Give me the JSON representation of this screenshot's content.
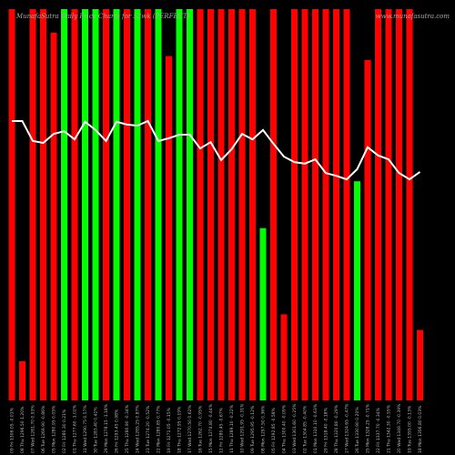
{
  "chart_data": {
    "type": "bar",
    "title": "MunafaSutra Daily Price Charts for 52wk (PERFECT)",
    "subtitle": "www.munafasutra.com",
    "categories": [
      "09 Fri 1306.05 -0.01%",
      "08 Thu 1296.50 1.20%",
      "07 Wed 1281.70 0.93%",
      "06 Tue 1269.90 -0.86%",
      "05 Mon 1280.95 0.05%",
      "02 Fri 1280.30 0.21%",
      "01 Thu 1277.60 -1.02%",
      "31 Wed 1290.75 0.57%",
      "30 Tue 1283.40 0.41%",
      "29 Mon 1278.15 -1.18%",
      "26 Fri 1293.45 0.98%",
      "25 Thu 1280.90 -0.34%",
      "24 Wed 1285.25 0.87%",
      "23 Tue 1274.20 -0.52%",
      "22 Mon 1280.85 0.77%",
      "19 Fri 1271.05 -0.15%",
      "18 Thu 1272.95 0.19%",
      "17 Wed 1270.50 0.62%",
      "16 Tue 1262.70 -0.95%",
      "15 Mon 1274.80 -0.44%",
      "12 Fri 1280.45 -0.67%",
      "11 Thu 1289.10 -0.22%",
      "10 Wed 1291.95 -0.31%",
      "09 Tue 1295.95 -0.12%",
      "08 Mon 1297.50 0.36%",
      "05 Fri 1292.85 -0.58%",
      "04 Thu 1300.40 -0.09%",
      "03 Wed 1301.60 -0.25%",
      "02 Tue 1304.85 -0.40%",
      "01 Mon 1310.10 -0.63%",
      "29 Fri 1318.40 -0.18%",
      "28 Thu 1320.80 -0.29%",
      "27 Wed 1324.65 -0.47%",
      "26 Tue 1330.90 0.20%",
      "25 Mon 1328.25 -0.71%",
      "22 Fri 1337.70 -0.34%",
      "21 Thu 1342.30 -0.55%",
      "20 Wed 1349.70 -0.39%",
      "19 Tue 1355.00 -0.13%",
      "18 Mon 1356.80 0.03%"
    ],
    "series": [
      {
        "name": "Volume",
        "values": [
          100,
          10,
          100,
          100,
          94,
          100,
          100,
          100,
          100,
          100,
          100,
          100,
          100,
          100,
          100,
          88,
          100,
          100,
          100,
          100,
          100,
          100,
          100,
          100,
          44,
          100,
          22,
          100,
          100,
          100,
          100,
          100,
          100,
          56,
          87,
          100,
          100,
          100,
          100,
          18
        ],
        "colors": [
          "#ff0000",
          "#ff0000",
          "#ff0000",
          "#ff0000",
          "#ff0000",
          "#00ff00",
          "#ff0000",
          "#00ff00",
          "#00ff00",
          "#ff0000",
          "#00ff00",
          "#ff0000",
          "#00ff00",
          "#ff0000",
          "#00ff00",
          "#ff0000",
          "#00ff00",
          "#00ff00",
          "#ff0000",
          "#ff0000",
          "#ff0000",
          "#ff0000",
          "#ff0000",
          "#ff0000",
          "#00ff00",
          "#ff0000",
          "#ff0000",
          "#ff0000",
          "#ff0000",
          "#ff0000",
          "#ff0000",
          "#ff0000",
          "#ff0000",
          "#00ff00",
          "#ff0000",
          "#ff0000",
          "#ff0000",
          "#ff0000",
          "#ff0000",
          "#ff0000"
        ]
      },
      {
        "name": "Price",
        "color": "#ffffff",
        "values": [
          71.4,
          71.4,
          66.3,
          65.8,
          68.1,
          68.8,
          66.7,
          71.2,
          69.1,
          66.3,
          71.2,
          70.5,
          70.2,
          71.4,
          66.3,
          67.0,
          67.9,
          67.9,
          64.4,
          66.0,
          61.4,
          64.2,
          68.1,
          66.7,
          69.1,
          65.6,
          62.3,
          60.9,
          60.5,
          61.6,
          58.1,
          57.4,
          56.5,
          59.1,
          64.7,
          62.6,
          61.6,
          58.1,
          56.5,
          58.4
        ]
      }
    ],
    "ylim": [
      0,
      100
    ]
  }
}
